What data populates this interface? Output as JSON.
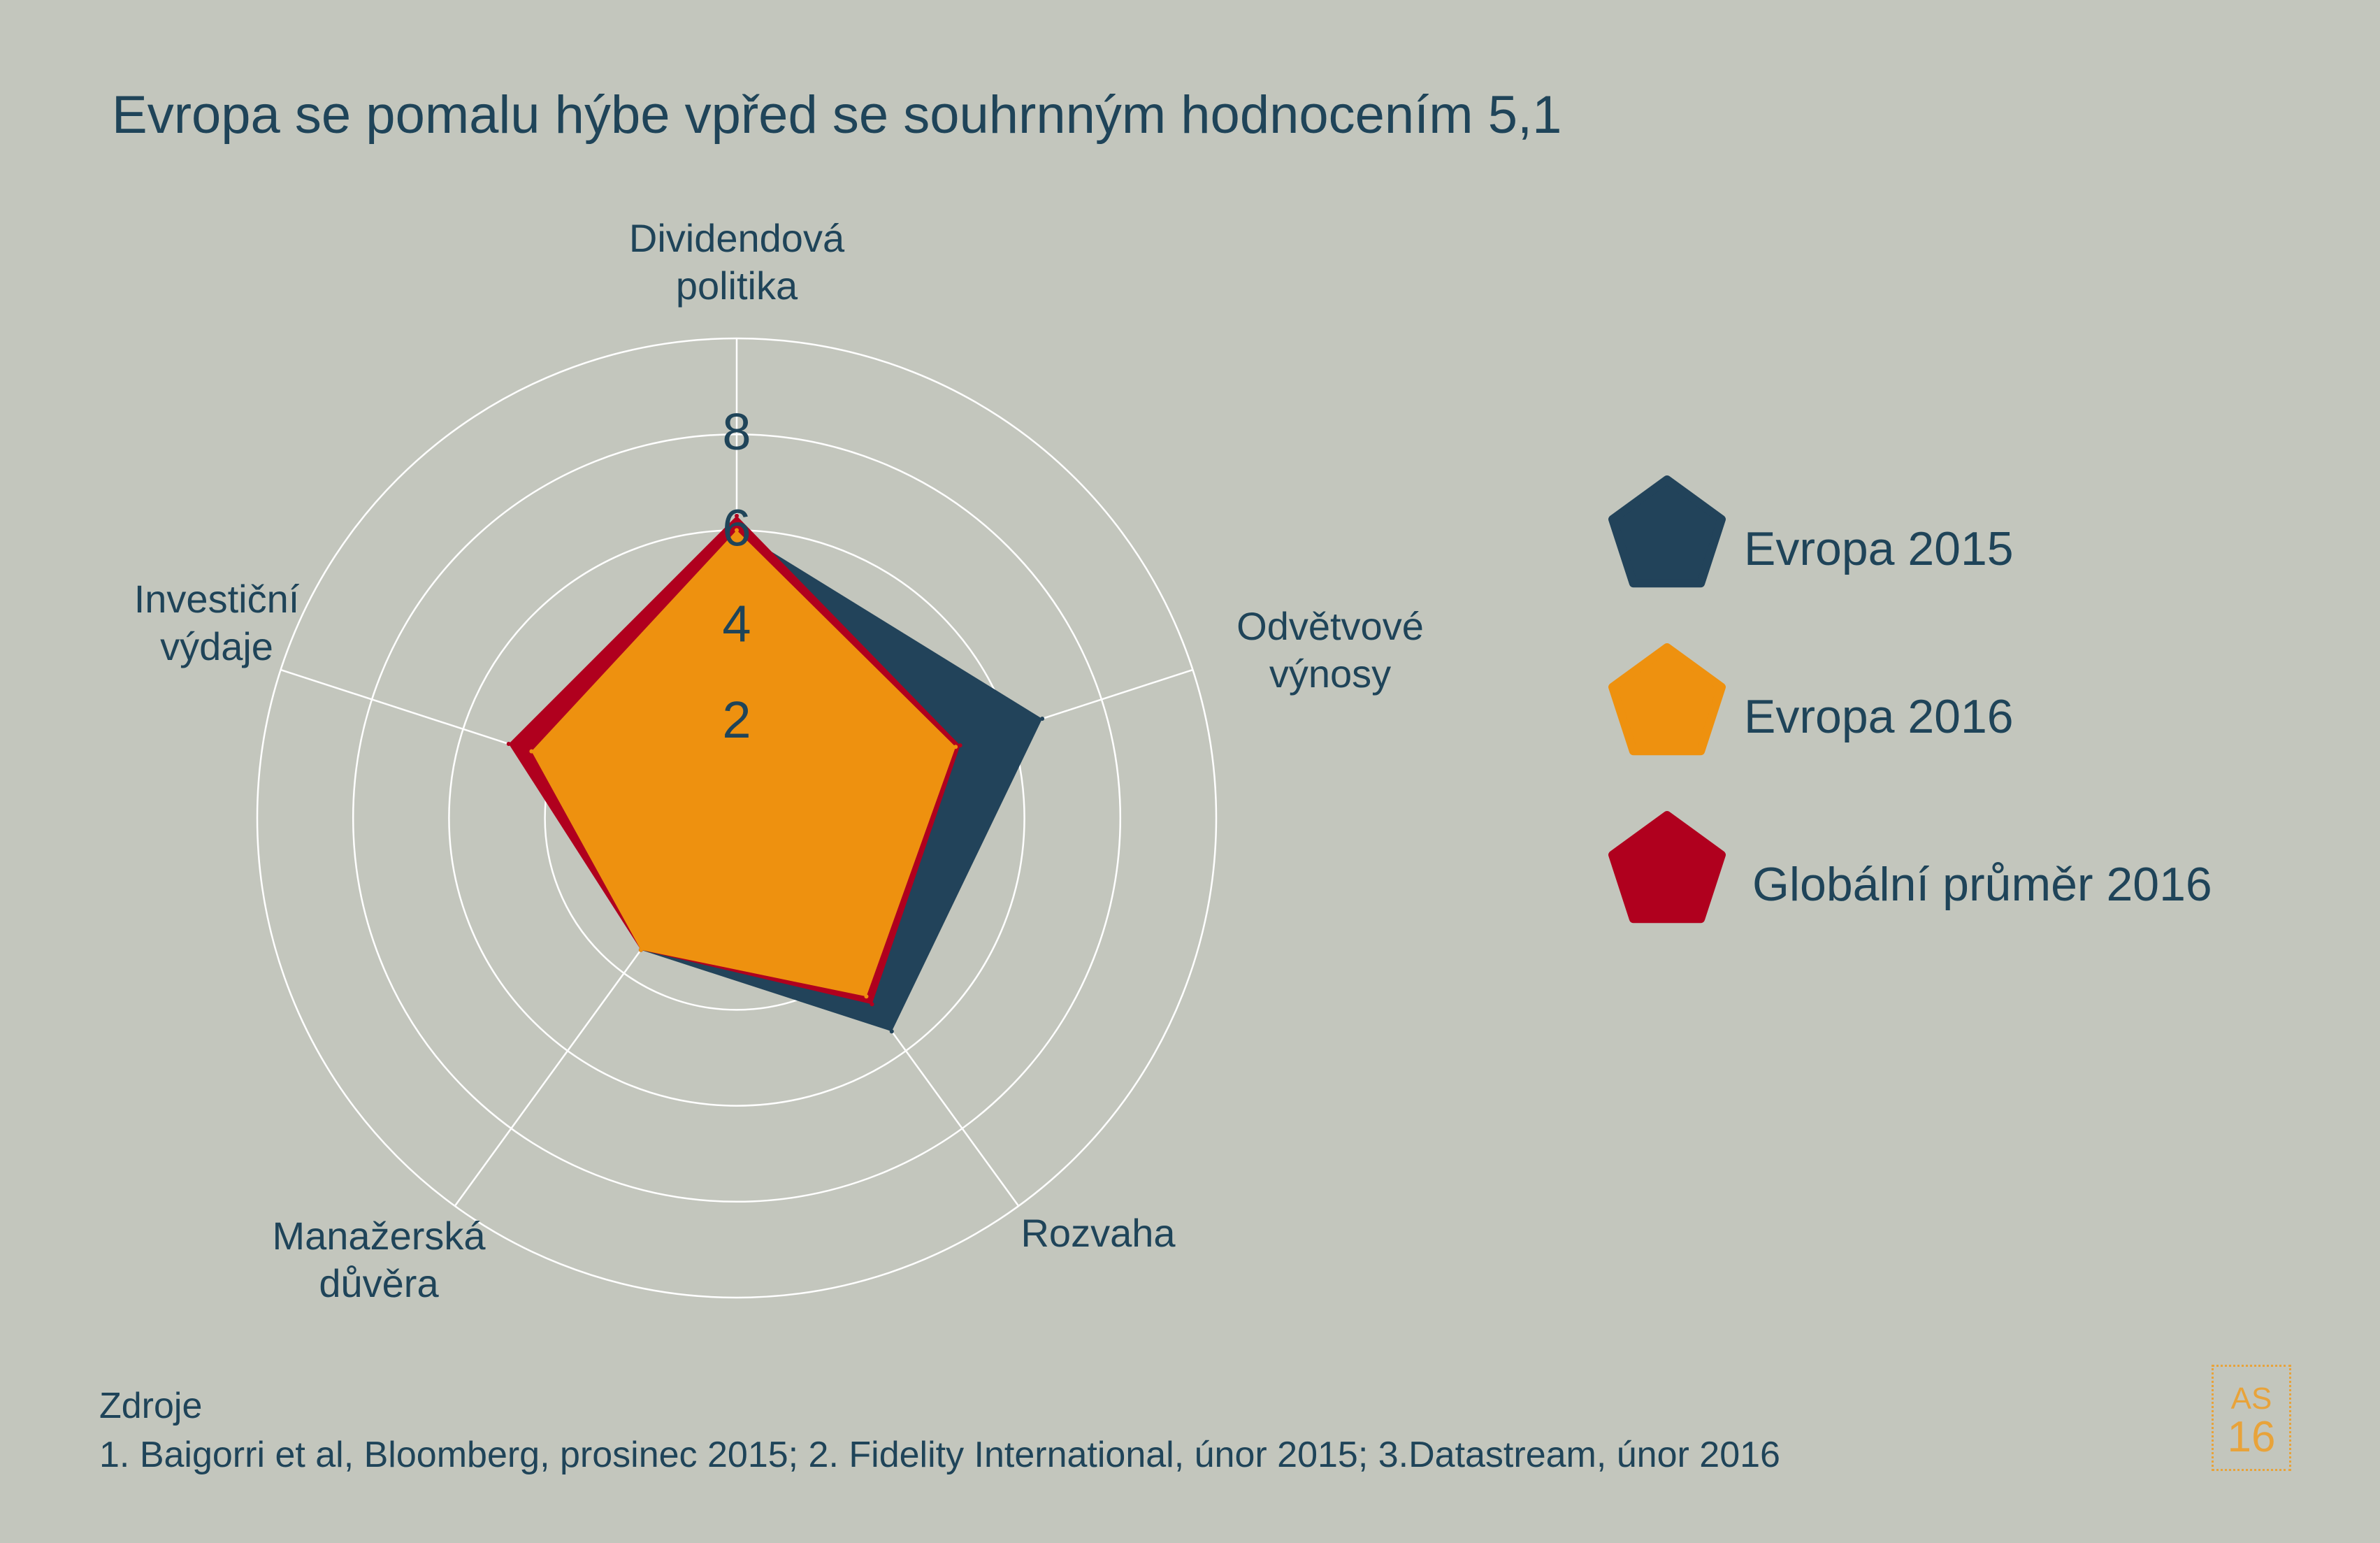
{
  "chart_data": {
    "type": "radar",
    "title": "Evropa se pomalu hýbe vpřed se souhrnným hodnocením 5,1",
    "axes": [
      "Dividendová politika",
      "Odvětvové výnosy",
      "Rozvaha",
      "Manažerská důvěra",
      "Investiční výdaje"
    ],
    "axis_labels": [
      [
        "Dividendová",
        "politika"
      ],
      [
        "Odvětvové",
        "výnosy"
      ],
      [
        "Rozvaha"
      ],
      [
        "Manažerská",
        "důvěra"
      ],
      [
        "Investiční",
        "výdaje"
      ]
    ],
    "radial_ticks": [
      2,
      4,
      6,
      8
    ],
    "rings": [
      2,
      4,
      6,
      8,
      10
    ],
    "rmax": 10,
    "series": [
      {
        "name": "Evropa 2015",
        "color": "#22435a",
        "values": [
          6.0,
          6.7,
          5.5,
          3.4,
          4.0
        ]
      },
      {
        "name": "Globální průměr 2016",
        "color": "#b0001e",
        "values": [
          6.3,
          4.9,
          4.8,
          3.4,
          5.0
        ]
      },
      {
        "name": "Evropa 2016",
        "color": "#ee910f",
        "values": [
          6.0,
          4.8,
          4.6,
          3.4,
          4.5
        ]
      }
    ],
    "legend": {
      "placement": "right",
      "entries": [
        {
          "label": "Evropa 2015",
          "color": "#22435a"
        },
        {
          "label": "Evropa 2016",
          "color": "#ee910f"
        },
        {
          "label": "Globální průměr 2016",
          "color": "#b0001e"
        }
      ]
    }
  },
  "footer": {
    "sources_title": "Zdroje",
    "sources_text": "1. Baigorri et al, Bloomberg, prosinec 2015; 2. Fidelity International, únor 2015; 3.Datastream, únor 2016"
  },
  "badge": {
    "top": "AS",
    "number": "16"
  },
  "colors": {
    "background": "#c3c6bd",
    "text": "#1f4459",
    "accent": "#e8a33a",
    "grid": "#ffffff"
  }
}
